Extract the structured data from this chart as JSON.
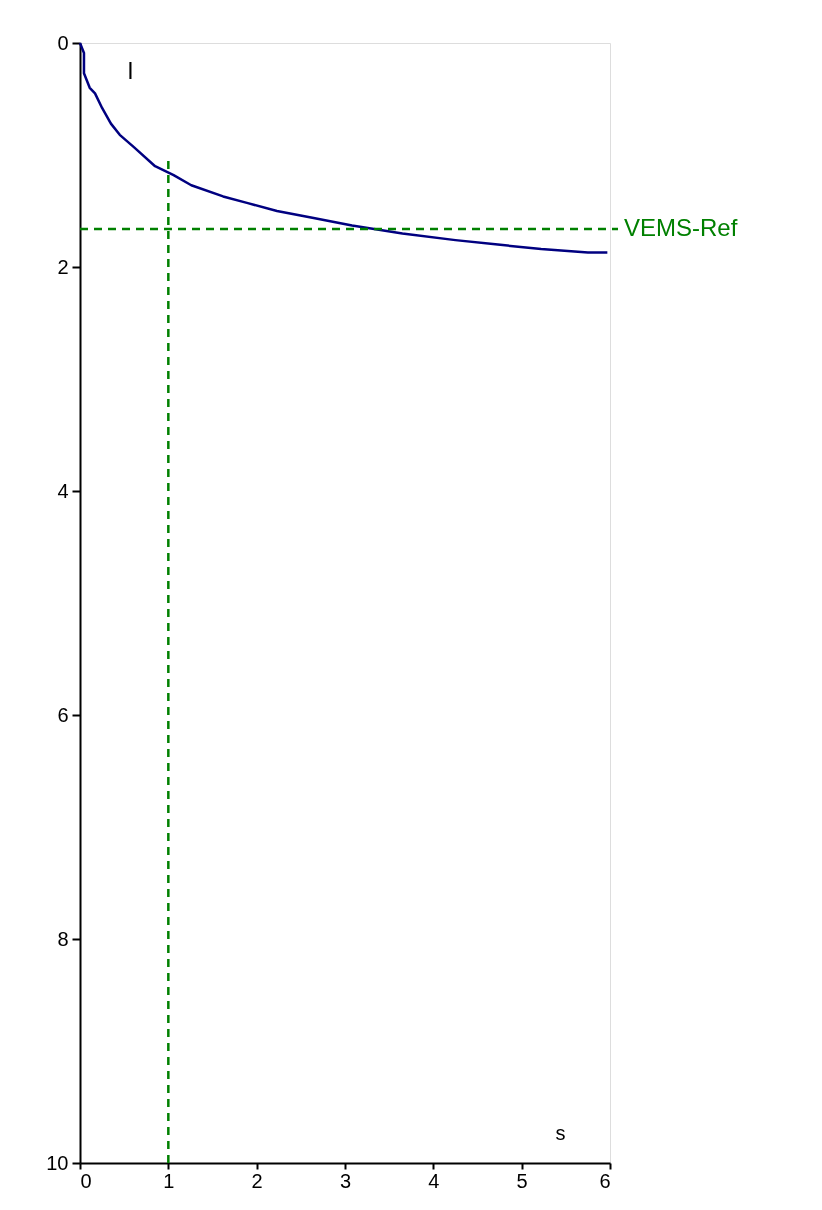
{
  "chart_data": {
    "type": "line",
    "xlabel": "s",
    "ylabel": "l",
    "series": [
      {
        "color": "#000080",
        "x": [
          0,
          0.045,
          0.045,
          0.11,
          0.17,
          0.25,
          0.35,
          0.45,
          0.61,
          0.85,
          1.06,
          1.26,
          1.62,
          1.9,
          2.23,
          2.63,
          3.08,
          3.65,
          4.25,
          4.73,
          5.22,
          5.75,
          5.97
        ],
        "values": [
          0,
          0.09,
          0.27,
          0.4,
          0.45,
          0.58,
          0.72,
          0.82,
          0.93,
          1.1,
          1.18,
          1.27,
          1.37,
          1.43,
          1.5,
          1.56,
          1.63,
          1.7,
          1.76,
          1.8,
          1.84,
          1.87,
          1.87
        ]
      }
    ],
    "xlim": [
      0,
      6
    ],
    "xticks": [
      0,
      1,
      2,
      3,
      4,
      5,
      6
    ],
    "ylim": [
      10,
      0
    ],
    "yticks": [
      0,
      2,
      4,
      6,
      8,
      10
    ],
    "grid": false,
    "marker": "none",
    "line_style": "solid",
    "ref_lines": [
      {
        "axis": "y",
        "value": 1.66,
        "label": "VEMS-Ref",
        "color": "#008000",
        "line_style": "dashed"
      },
      {
        "axis": "x",
        "value": 1,
        "label": null,
        "color": "#008000",
        "line_style": "dashed"
      }
    ]
  }
}
